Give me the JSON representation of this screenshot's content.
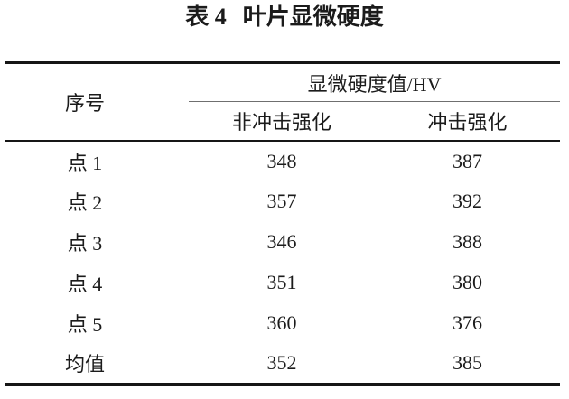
{
  "title": {
    "label": "表 4",
    "text": "叶片显微硬度"
  },
  "table": {
    "col1_header": "序号",
    "group_header": "显微硬度值/HV",
    "sub_headers": [
      "非冲击强化",
      "冲击强化"
    ],
    "rows": [
      {
        "label": "点 1",
        "values": [
          "348",
          "387"
        ]
      },
      {
        "label": "点 2",
        "values": [
          "357",
          "392"
        ]
      },
      {
        "label": "点 3",
        "values": [
          "346",
          "388"
        ]
      },
      {
        "label": "点 4",
        "values": [
          "351",
          "380"
        ]
      },
      {
        "label": "点 5",
        "values": [
          "360",
          "376"
        ]
      },
      {
        "label": "均值",
        "values": [
          "352",
          "385"
        ]
      }
    ]
  },
  "colors": {
    "background": "#ffffff",
    "text": "#1b1b1b",
    "thick_rule": "#161616",
    "thin_rule": "#6f6f6f"
  }
}
